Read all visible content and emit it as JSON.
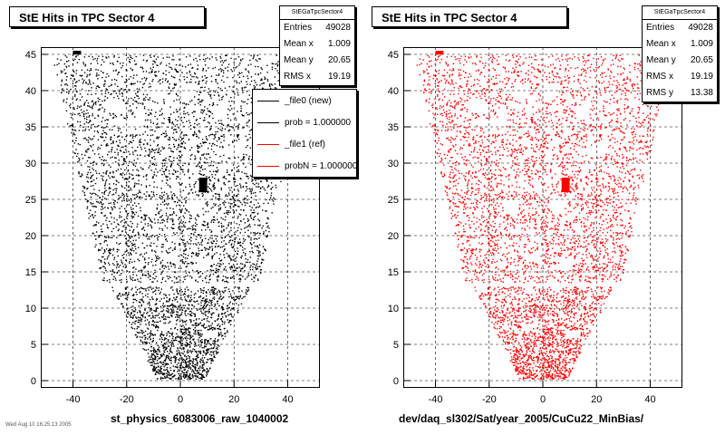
{
  "chart_data": [
    {
      "type": "scatter",
      "title": "StE Hits in TPC Sector 4",
      "xlabel": "st_physics_6083006_raw_1040002",
      "ylabel": "",
      "xlim": [
        -52,
        52
      ],
      "ylim": [
        -1,
        46
      ],
      "xticks": [
        -40,
        -20,
        0,
        20,
        40
      ],
      "yticks": [
        0,
        5,
        10,
        15,
        20,
        25,
        30,
        35,
        40,
        45
      ],
      "grid": true,
      "color": "#000000",
      "stats": {
        "name": "StEGaTpcSector4",
        "rows": [
          {
            "label": "Entries",
            "value": "49028"
          },
          {
            "label": "Mean x",
            "value": "1.009"
          },
          {
            "label": "Mean y",
            "value": "20.65"
          },
          {
            "label": "RMS x",
            "value": "19.19"
          }
        ]
      },
      "legend": {
        "placement": "top-right",
        "entries": [
          {
            "label": "_file0 (new)",
            "color": "#000000"
          },
          {
            "label": "prob = 1.000000",
            "color": "#000000"
          },
          {
            "label": "_file1 (ref)",
            "color": "#ff0000"
          },
          {
            "label": "probN = 1.000000",
            "color": "#ff0000"
          }
        ]
      }
    },
    {
      "type": "scatter",
      "title": "StE Hits in TPC Sector 4",
      "xlabel": "dev/daq_sl302/Sat/year_2005/CuCu22_MinBias/",
      "ylabel": "",
      "xlim": [
        -52,
        52
      ],
      "ylim": [
        -1,
        46
      ],
      "xticks": [
        -40,
        -20,
        0,
        20,
        40
      ],
      "yticks": [
        0,
        5,
        10,
        15,
        20,
        25,
        30,
        35,
        40,
        45
      ],
      "grid": true,
      "color": "#ff0000",
      "stats": {
        "name": "StEGaTpcSector4",
        "rows": [
          {
            "label": "Entries",
            "value": "49028"
          },
          {
            "label": "Mean x",
            "value": "1.009"
          },
          {
            "label": "Mean y",
            "value": "20.65"
          },
          {
            "label": "RMS x",
            "value": "19.19"
          },
          {
            "label": "RMS y",
            "value": "13.38"
          }
        ]
      }
    }
  ],
  "footer": "Wed Aug 10 16:25:13 2005"
}
